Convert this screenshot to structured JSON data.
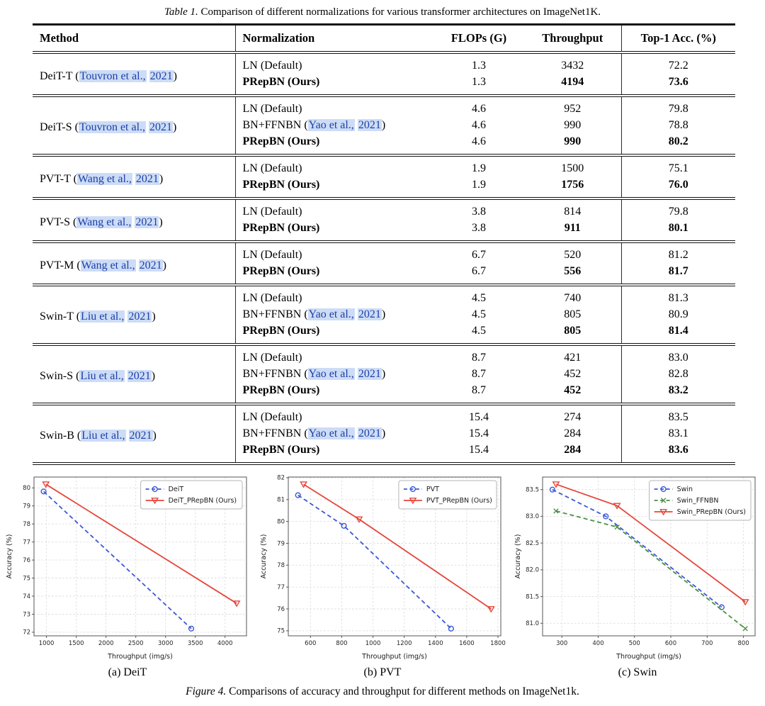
{
  "table": {
    "caption_label": "Table 1.",
    "caption_text": "Comparison of different normalizations for various transformer architectures on ImageNet1K.",
    "columns": [
      "Method",
      "Normalization",
      "FLOPs (G)",
      "Throughput",
      "Top-1 Acc. (%)"
    ],
    "groups": [
      {
        "method": "DeiT-T",
        "cite": "Touvron et al.,",
        "year": "2021",
        "rows": [
          {
            "norm": "LN (Default)",
            "flops": "1.3",
            "throughput": "3432",
            "acc": "72.2",
            "bold": false
          },
          {
            "norm": "PRepBN (Ours)",
            "flops": "1.3",
            "throughput": "4194",
            "acc": "73.6",
            "bold": true
          }
        ]
      },
      {
        "method": "DeiT-S",
        "cite": "Touvron et al.,",
        "year": "2021",
        "rows": [
          {
            "norm": "LN (Default)",
            "flops": "4.6",
            "throughput": "952",
            "acc": "79.8",
            "bold": false
          },
          {
            "norm": "BN+FFNBN",
            "norm_cite": "Yao et al.,",
            "norm_year": "2021",
            "flops": "4.6",
            "throughput": "990",
            "acc": "78.8",
            "bold": false
          },
          {
            "norm": "PRepBN (Ours)",
            "flops": "4.6",
            "throughput": "990",
            "acc": "80.2",
            "bold": true
          }
        ]
      },
      {
        "method": "PVT-T",
        "cite": "Wang et al.,",
        "year": "2021",
        "rows": [
          {
            "norm": "LN (Default)",
            "flops": "1.9",
            "throughput": "1500",
            "acc": "75.1",
            "bold": false
          },
          {
            "norm": "PRepBN (Ours)",
            "flops": "1.9",
            "throughput": "1756",
            "acc": "76.0",
            "bold": true
          }
        ]
      },
      {
        "method": "PVT-S",
        "cite": "Wang et al.,",
        "year": "2021",
        "rows": [
          {
            "norm": "LN (Default)",
            "flops": "3.8",
            "throughput": "814",
            "acc": "79.8",
            "bold": false
          },
          {
            "norm": "PRepBN (Ours)",
            "flops": "3.8",
            "throughput": "911",
            "acc": "80.1",
            "bold": true
          }
        ]
      },
      {
        "method": "PVT-M",
        "cite": "Wang et al.,",
        "year": "2021",
        "rows": [
          {
            "norm": "LN (Default)",
            "flops": "6.7",
            "throughput": "520",
            "acc": "81.2",
            "bold": false
          },
          {
            "norm": "PRepBN (Ours)",
            "flops": "6.7",
            "throughput": "556",
            "acc": "81.7",
            "bold": true
          }
        ]
      },
      {
        "method": "Swin-T",
        "cite": "Liu et al.,",
        "year": "2021",
        "rows": [
          {
            "norm": "LN (Default)",
            "flops": "4.5",
            "throughput": "740",
            "acc": "81.3",
            "bold": false
          },
          {
            "norm": "BN+FFNBN",
            "norm_cite": "Yao et al.,",
            "norm_year": "2021",
            "flops": "4.5",
            "throughput": "805",
            "acc": "80.9",
            "bold": false
          },
          {
            "norm": "PRepBN (Ours)",
            "flops": "4.5",
            "throughput": "805",
            "acc": "81.4",
            "bold": true
          }
        ]
      },
      {
        "method": "Swin-S",
        "cite": "Liu et al.,",
        "year": "2021",
        "rows": [
          {
            "norm": "LN (Default)",
            "flops": "8.7",
            "throughput": "421",
            "acc": "83.0",
            "bold": false
          },
          {
            "norm": "BN+FFNBN",
            "norm_cite": "Yao et al.,",
            "norm_year": "2021",
            "flops": "8.7",
            "throughput": "452",
            "acc": "82.8",
            "bold": false
          },
          {
            "norm": "PRepBN (Ours)",
            "flops": "8.7",
            "throughput": "452",
            "acc": "83.2",
            "bold": true
          }
        ]
      },
      {
        "method": "Swin-B",
        "cite": "Liu et al.,",
        "year": "2021",
        "rows": [
          {
            "norm": "LN (Default)",
            "flops": "15.4",
            "throughput": "274",
            "acc": "83.5",
            "bold": false
          },
          {
            "norm": "BN+FFNBN",
            "norm_cite": "Yao et al.,",
            "norm_year": "2021",
            "flops": "15.4",
            "throughput": "284",
            "acc": "83.1",
            "bold": false
          },
          {
            "norm": "PRepBN (Ours)",
            "flops": "15.4",
            "throughput": "284",
            "acc": "83.6",
            "bold": true
          }
        ]
      }
    ]
  },
  "figure": {
    "caption_label": "Figure 4.",
    "caption_text": "Comparisons of accuracy and throughput for different methods on ImageNet1k.",
    "subcaptions": [
      "(a) DeiT",
      "(b) PVT",
      "(c) Swin"
    ]
  },
  "colors": {
    "series_blue": "#3b58d6",
    "series_green": "#4a9144",
    "series_red": "#e5463a",
    "link_blue": "#1c3fa8",
    "cite_highlight": "#cddcf6",
    "grid": "#dcdcdc",
    "spine": "#555555"
  },
  "chart_data": [
    {
      "type": "line",
      "name": "deit-chart",
      "caption": "(a) DeiT",
      "xlabel": "Throughput (img/s)",
      "ylabel": "Accuracy (%)",
      "xlim": [
        790,
        4360
      ],
      "ylim": [
        71.8,
        80.6
      ],
      "xticks": [
        1000,
        1500,
        2000,
        2500,
        3000,
        3500,
        4000
      ],
      "yticks": [
        72,
        73,
        74,
        75,
        76,
        77,
        78,
        79,
        80
      ],
      "ytick_decimals": 0,
      "grid": true,
      "legend_position": "top-right",
      "series": [
        {
          "name": "DeiT",
          "color_key": "series_blue",
          "style": "dashed",
          "marker": "circle",
          "points": [
            [
              952,
              79.8
            ],
            [
              3432,
              72.2
            ]
          ]
        },
        {
          "name": "DeiT_PRepBN (Ours)",
          "color_key": "series_red",
          "style": "solid",
          "marker": "triangle-down",
          "points": [
            [
              990,
              80.2
            ],
            [
              4194,
              73.6
            ]
          ]
        }
      ]
    },
    {
      "type": "line",
      "name": "pvt-chart",
      "caption": "(b) PVT",
      "xlabel": "Throughput (img/s)",
      "ylabel": "Accuracy (%)",
      "xlim": [
        458,
        1818
      ],
      "ylim": [
        74.77,
        82.03
      ],
      "xticks": [
        600,
        800,
        1000,
        1200,
        1400,
        1600,
        1800
      ],
      "yticks": [
        75,
        76,
        77,
        78,
        79,
        80,
        81,
        82
      ],
      "ytick_decimals": 0,
      "grid": true,
      "legend_position": "top-right",
      "series": [
        {
          "name": "PVT",
          "color_key": "series_blue",
          "style": "dashed",
          "marker": "circle",
          "points": [
            [
              520,
              81.2
            ],
            [
              814,
              79.8
            ],
            [
              1500,
              75.1
            ]
          ]
        },
        {
          "name": "PVT_PRepBN (Ours)",
          "color_key": "series_red",
          "style": "solid",
          "marker": "triangle-down",
          "points": [
            [
              556,
              81.7
            ],
            [
              911,
              80.1
            ],
            [
              1756,
              76.0
            ]
          ]
        }
      ]
    },
    {
      "type": "line",
      "name": "swin-chart",
      "caption": "(c) Swin",
      "xlabel": "Throughput (img/s)",
      "ylabel": "Accuracy (%)",
      "xlim": [
        247,
        832
      ],
      "ylim": [
        80.765,
        83.735
      ],
      "xticks": [
        300,
        400,
        500,
        600,
        700,
        800
      ],
      "yticks": [
        81.0,
        81.5,
        82.0,
        82.5,
        83.0,
        83.5
      ],
      "ytick_decimals": 1,
      "grid": true,
      "legend_position": "top-right",
      "series": [
        {
          "name": "Swin",
          "color_key": "series_blue",
          "style": "dashed",
          "marker": "circle",
          "points": [
            [
              274,
              83.5
            ],
            [
              421,
              83.0
            ],
            [
              740,
              81.3
            ]
          ]
        },
        {
          "name": "Swin_FFNBN",
          "color_key": "series_green",
          "style": "dashed",
          "marker": "x",
          "points": [
            [
              284,
              83.1
            ],
            [
              452,
              82.8
            ],
            [
              805,
              80.9
            ]
          ]
        },
        {
          "name": "Swin_PRepBN (Ours)",
          "color_key": "series_red",
          "style": "solid",
          "marker": "triangle-down",
          "points": [
            [
              284,
              83.6
            ],
            [
              452,
              83.2
            ],
            [
              805,
              81.4
            ]
          ]
        }
      ]
    }
  ]
}
